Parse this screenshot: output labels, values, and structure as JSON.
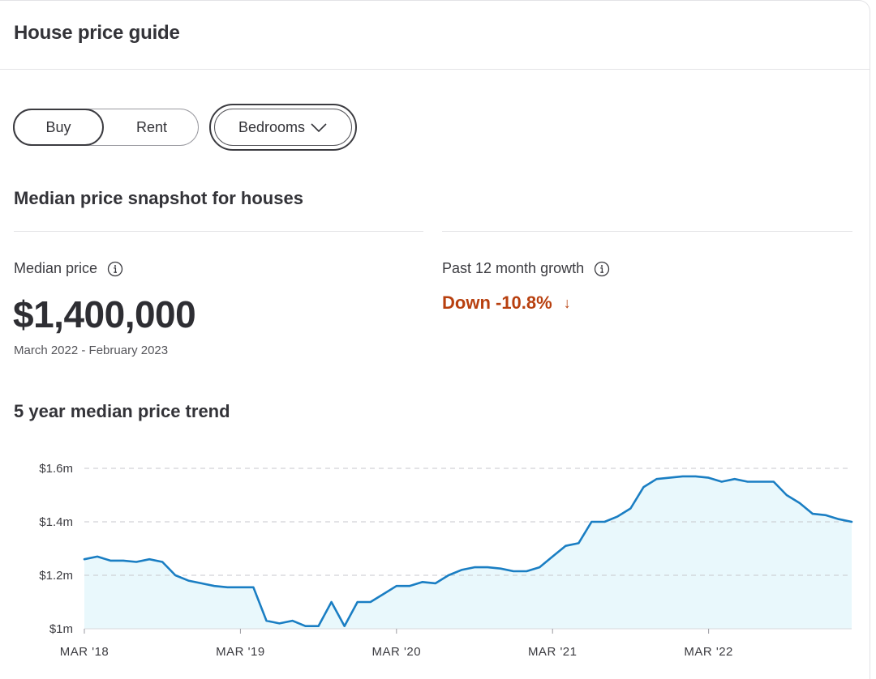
{
  "header": {
    "title": "House price guide"
  },
  "filters": {
    "buy_label": "Buy",
    "rent_label": "Rent",
    "bedrooms_label": "Bedrooms"
  },
  "snapshot": {
    "title": "Median price snapshot for houses",
    "median_label": "Median price",
    "median_value": "$1,400,000",
    "period": "March 2022 - February 2023",
    "growth_label": "Past 12 month growth",
    "growth_value": "Down -10.8%",
    "growth_arrow": "↓",
    "growth_color": "#b8400f"
  },
  "trend": {
    "title": "5 year median price trend"
  },
  "chart_data": {
    "type": "area",
    "y_tick_labels": [
      "$1m",
      "$1.2m",
      "$1.4m",
      "$1.6m"
    ],
    "y_ticks": [
      1.0,
      1.2,
      1.4,
      1.6
    ],
    "ylim": [
      1.0,
      1.6
    ],
    "x_tick_labels": [
      "MAR '18",
      "MAR '19",
      "MAR '20",
      "MAR '21",
      "MAR '22"
    ],
    "x_ticks": [
      "2018-03",
      "2019-03",
      "2020-03",
      "2021-03",
      "2022-03"
    ],
    "x": [
      "2018-03",
      "2018-04",
      "2018-05",
      "2018-06",
      "2018-07",
      "2018-08",
      "2018-09",
      "2018-10",
      "2018-11",
      "2018-12",
      "2019-01",
      "2019-02",
      "2019-03",
      "2019-04",
      "2019-05",
      "2019-06",
      "2019-07",
      "2019-08",
      "2019-09",
      "2019-10",
      "2019-11",
      "2019-12",
      "2020-01",
      "2020-02",
      "2020-03",
      "2020-04",
      "2020-05",
      "2020-06",
      "2020-07",
      "2020-08",
      "2020-09",
      "2020-10",
      "2020-11",
      "2020-12",
      "2021-01",
      "2021-02",
      "2021-03",
      "2021-04",
      "2021-05",
      "2021-06",
      "2021-07",
      "2021-08",
      "2021-09",
      "2021-10",
      "2021-11",
      "2021-12",
      "2022-01",
      "2022-02",
      "2022-03",
      "2022-04",
      "2022-05",
      "2022-06",
      "2022-07",
      "2022-08",
      "2022-09",
      "2022-10",
      "2022-11",
      "2022-12",
      "2023-01",
      "2023-02"
    ],
    "series": [
      {
        "values": [
          1.26,
          1.27,
          1.255,
          1.255,
          1.25,
          1.26,
          1.25,
          1.2,
          1.18,
          1.17,
          1.16,
          1.155,
          1.155,
          1.155,
          1.03,
          1.02,
          1.03,
          1.01,
          1.01,
          1.1,
          1.01,
          1.1,
          1.1,
          1.13,
          1.16,
          1.16,
          1.175,
          1.17,
          1.2,
          1.22,
          1.23,
          1.23,
          1.225,
          1.215,
          1.215,
          1.23,
          1.27,
          1.31,
          1.32,
          1.4,
          1.4,
          1.42,
          1.45,
          1.53,
          1.56,
          1.565,
          1.57,
          1.57,
          1.565,
          1.55,
          1.56,
          1.55,
          1.55,
          1.55,
          1.5,
          1.47,
          1.43,
          1.425,
          1.41,
          1.4
        ],
        "color": "#1a7ec3",
        "fill": "#e9f8fc"
      }
    ],
    "grid": true,
    "grid_style": "dashed"
  }
}
